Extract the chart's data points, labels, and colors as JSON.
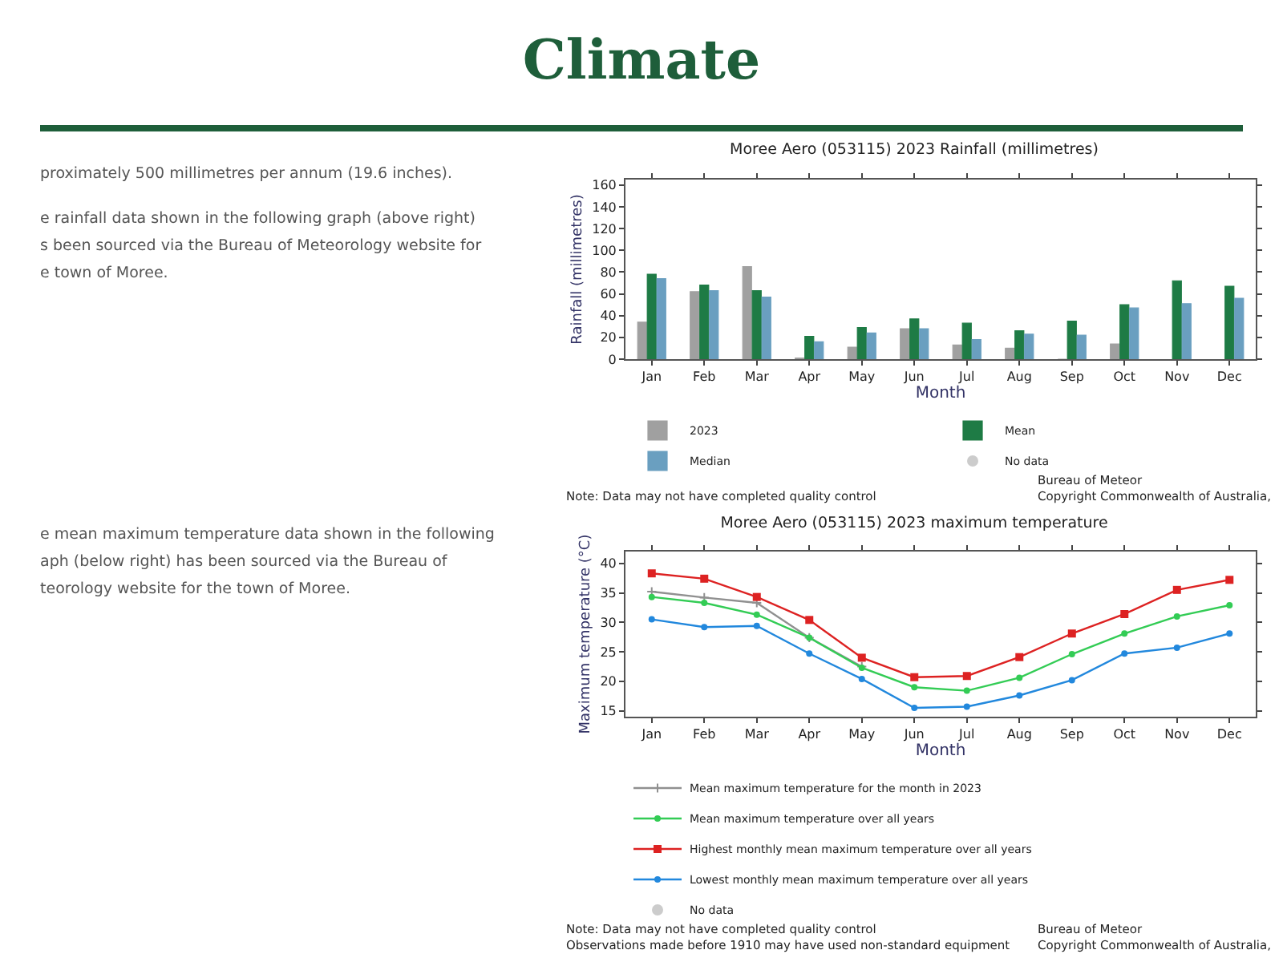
{
  "chart_data": [
    {
      "type": "other",
      "title": "Climate",
      "annotations": [
        "proximately 500 millimetres per annum (19.6 inches).",
        "e rainfall data shown in the following graph (above right)\ns been sourced via the Bureau of Meteorology website for\ne town of Moree.",
        "e mean maximum temperature data shown in the following\naph (below right) has been sourced via the Bureau of\nteorology website for the town of Moree."
      ]
    },
    {
      "type": "bar",
      "title": "Moree Aero (053115) 2023 Rainfall (millimetres)",
      "xlabel": "Month",
      "ylabel": "Rainfall (millimetres)",
      "categories": [
        "Jan",
        "Feb",
        "Mar",
        "Apr",
        "May",
        "Jun",
        "Jul",
        "Aug",
        "Sep",
        "Oct",
        "Nov",
        "Dec"
      ],
      "ylim": [
        0,
        165
      ],
      "yticks": [
        0,
        20,
        40,
        60,
        80,
        100,
        120,
        140,
        160
      ],
      "grid": false,
      "legend": "bottom left",
      "series": [
        {
          "name": "2023",
          "color": "#a0a0a0",
          "values": [
            34,
            62,
            85,
            1,
            11,
            28,
            13,
            10,
            0,
            14,
            null,
            null
          ]
        },
        {
          "name": "Mean",
          "color": "#1e7b45",
          "values": [
            78,
            68,
            63,
            21,
            29,
            37,
            33,
            26,
            35,
            50,
            72,
            67
          ]
        },
        {
          "name": "Median",
          "color": "#6a9fc0",
          "values": [
            74,
            63,
            57,
            16,
            24,
            28,
            18,
            23,
            22,
            47,
            51,
            56
          ]
        },
        {
          "name": "No data",
          "type": "scatter",
          "color": "#cccccc",
          "values": [
            null,
            null,
            null,
            null,
            null,
            null,
            null,
            null,
            null,
            null,
            null,
            null
          ]
        }
      ],
      "annotations": [
        "Note: Data may not have completed quality control",
        "Bureau of Meteor\nCopyright Commonwealth of Australia,"
      ]
    },
    {
      "type": "line",
      "title": "Moree Aero (053115) 2023 maximum temperature",
      "xlabel": "Month",
      "ylabel": "Maximum temperature (°C)",
      "categories": [
        "Jan",
        "Feb",
        "Mar",
        "Apr",
        "May",
        "Jun",
        "Jul",
        "Aug",
        "Sep",
        "Oct",
        "Nov",
        "Dec"
      ],
      "ylim": [
        14,
        42
      ],
      "yticks": [
        15,
        20,
        25,
        30,
        35,
        40
      ],
      "grid": false,
      "legend": "bottom left",
      "series": [
        {
          "name": "Mean maximum temperature for the month in 2023",
          "color": "#909090",
          "marker": "cross",
          "values": [
            35.2,
            34.2,
            33.3,
            27.4,
            22.5,
            null,
            null,
            null,
            null,
            null,
            null,
            null
          ]
        },
        {
          "name": "Mean maximum temperature over all years",
          "color": "#33cc55",
          "marker": "circle",
          "values": [
            34.3,
            33.3,
            31.3,
            27.4,
            22.3,
            19.0,
            18.4,
            20.6,
            24.6,
            28.1,
            31.0,
            32.9
          ]
        },
        {
          "name": "Highest monthly mean maximum temperature over all years",
          "color": "#dd2222",
          "marker": "square",
          "values": [
            38.3,
            37.4,
            34.3,
            30.4,
            24.0,
            20.7,
            20.9,
            24.1,
            28.1,
            31.4,
            35.5,
            37.2
          ]
        },
        {
          "name": "Lowest monthly mean maximum temperature over all years",
          "color": "#2288dd",
          "marker": "circle",
          "values": [
            30.5,
            29.2,
            29.4,
            24.7,
            20.4,
            15.5,
            15.7,
            17.6,
            20.2,
            24.7,
            25.7,
            28.1
          ]
        },
        {
          "name": "No data",
          "type": "scatter",
          "color": "#cccccc",
          "marker": "circle",
          "values": [
            null,
            null,
            null,
            null,
            null,
            null,
            null,
            null,
            null,
            null,
            null,
            null
          ]
        }
      ],
      "annotations": [
        "Note: Data may not have completed quality control\nObservations made before 1910 may have used non-standard equipment",
        "Bureau of Meteor\nCopyright Commonwealth of Australia,"
      ]
    }
  ]
}
